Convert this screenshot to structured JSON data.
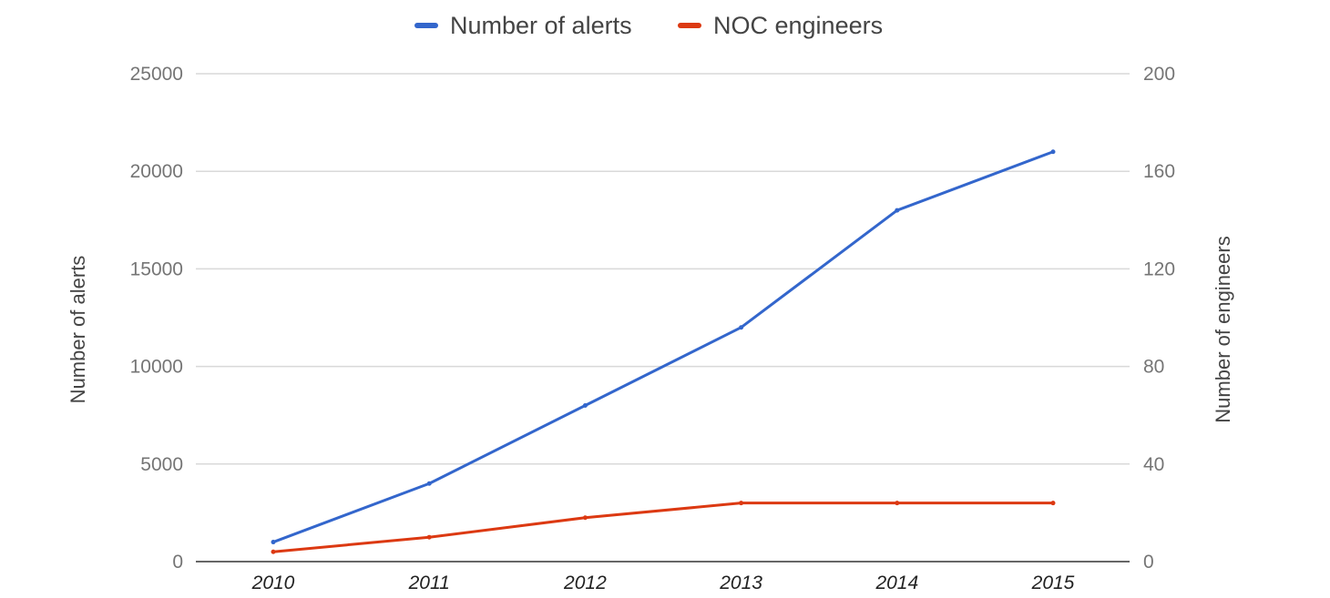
{
  "chart_data": {
    "type": "line",
    "categories": [
      "2010",
      "2011",
      "2012",
      "2013",
      "2014",
      "2015"
    ],
    "series": [
      {
        "name": "Number of alerts",
        "axis": "left",
        "color": "#3366cc",
        "values": [
          1000,
          4000,
          8000,
          12000,
          18000,
          21000
        ]
      },
      {
        "name": "NOC engineers",
        "axis": "right",
        "color": "#dc3912",
        "values": [
          4,
          10,
          18,
          24,
          24,
          24
        ]
      }
    ],
    "ylabel": "Number of alerts",
    "ylabel_right": "Number of engineers",
    "ylim": [
      0,
      25000
    ],
    "ylim_right": [
      0,
      200
    ],
    "yticks": [
      "0",
      "5000",
      "10000",
      "15000",
      "20000",
      "25000"
    ],
    "yticks_right": [
      "0",
      "40",
      "80",
      "120",
      "160",
      "200"
    ],
    "grid": true,
    "legend_position": "top-center"
  }
}
